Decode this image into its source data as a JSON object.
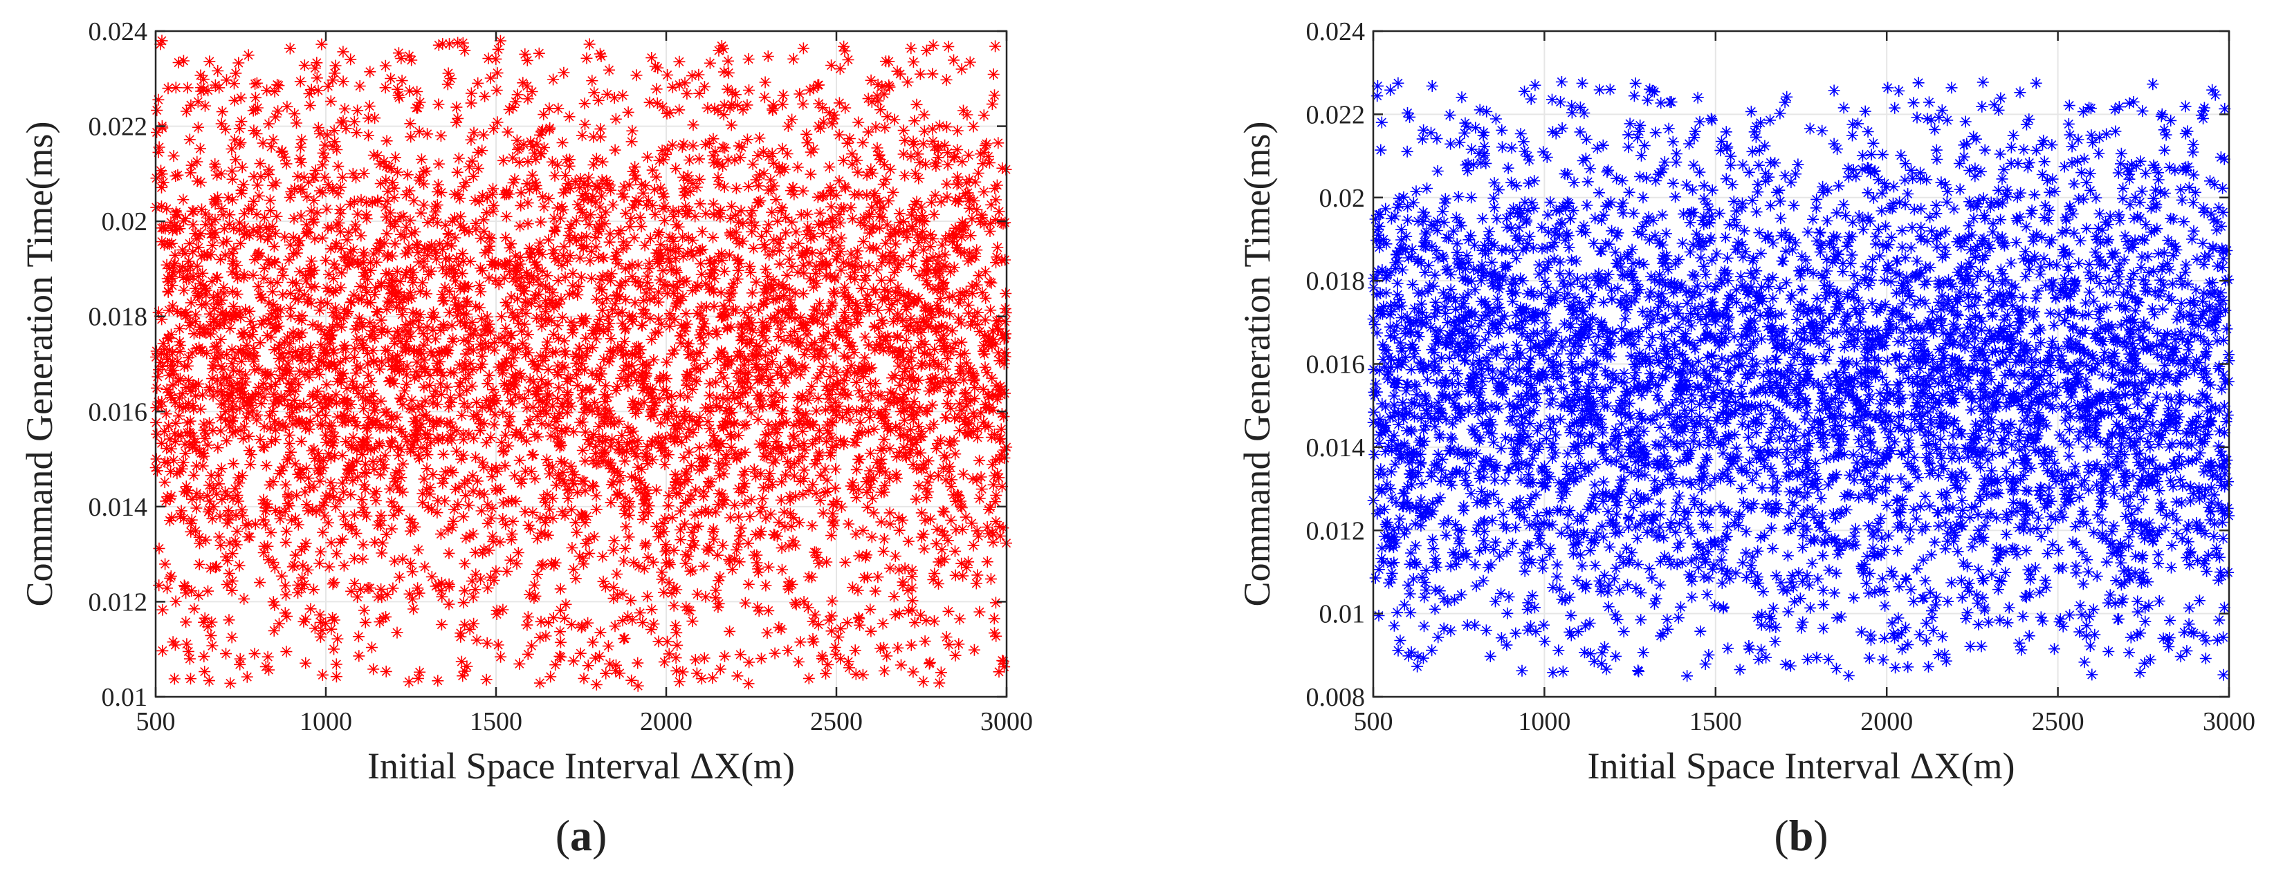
{
  "chart_data": [
    {
      "type": "scatter",
      "panel_label": "a",
      "xlabel": "Initial Space Interval ΔX(m)",
      "ylabel": "Command Generation Time(ms)",
      "xlim": [
        500,
        3000
      ],
      "ylim": [
        0.01,
        0.024
      ],
      "xticks": [
        500,
        1000,
        1500,
        2000,
        2500,
        3000
      ],
      "yticks": [
        0.01,
        0.012,
        0.014,
        0.016,
        0.018,
        0.02,
        0.022,
        0.024
      ],
      "xtick_labels": [
        "500",
        "1000",
        "1500",
        "2000",
        "2500",
        "3000"
      ],
      "ytick_labels": [
        "0.01",
        "0.012",
        "0.014",
        "0.016",
        "0.018",
        "0.02",
        "0.022",
        "0.024"
      ],
      "grid": true,
      "marker": "asterisk",
      "color": "#ff0000",
      "series": [
        {
          "x_range": [
            500,
            3000
          ],
          "y_range": [
            0.0102,
            0.0238
          ],
          "y_center": 0.0172,
          "y_spread": 0.0031,
          "point_count": 5000
        }
      ]
    },
    {
      "type": "scatter",
      "panel_label": "b",
      "xlabel": "Initial Space Interval ΔX(m)",
      "ylabel": "Command Generation Time(ms)",
      "xlim": [
        500,
        3000
      ],
      "ylim": [
        0.008,
        0.024
      ],
      "xticks": [
        500,
        1000,
        1500,
        2000,
        2500,
        3000
      ],
      "yticks": [
        0.008,
        0.01,
        0.012,
        0.014,
        0.016,
        0.018,
        0.02,
        0.022,
        0.024
      ],
      "xtick_labels": [
        "500",
        "1000",
        "1500",
        "2000",
        "2500",
        "3000"
      ],
      "ytick_labels": [
        "0.008",
        "0.01",
        "0.012",
        "0.014",
        "0.016",
        "0.018",
        "0.02",
        "0.022",
        "0.024"
      ],
      "grid": true,
      "marker": "asterisk",
      "color": "#0000ff",
      "series": [
        {
          "x_range": [
            500,
            3000
          ],
          "y_range": [
            0.0085,
            0.0229
          ],
          "y_center": 0.0155,
          "y_spread": 0.0031,
          "point_count": 5000
        }
      ]
    }
  ]
}
